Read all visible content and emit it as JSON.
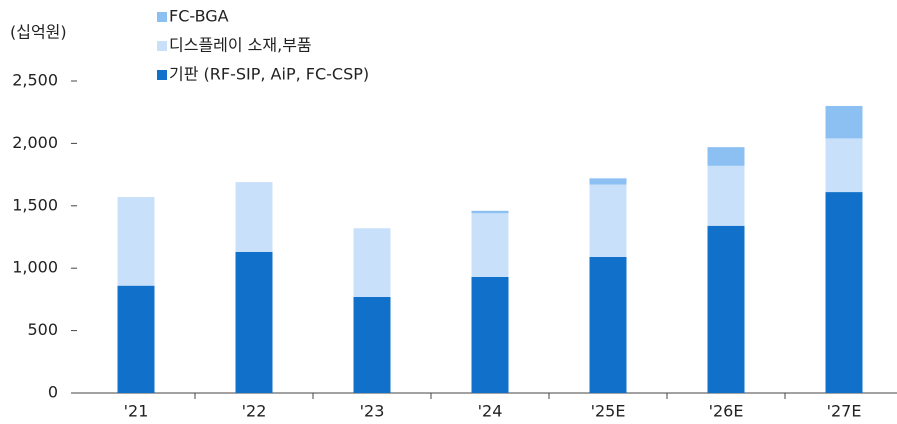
{
  "chart_data": {
    "type": "bar",
    "stacked": true,
    "y_label": "(십억원)",
    "categories": [
      "'21",
      "'22",
      "'23",
      "'24",
      "'25E",
      "'26E",
      "'27E"
    ],
    "series": [
      {
        "name": "기판 (RF-SIP, AiP, FC-CSP)",
        "color": "#1170c9",
        "values": [
          860,
          1130,
          770,
          930,
          1090,
          1340,
          1610
        ]
      },
      {
        "name": "디스플레이 소재,부품",
        "color": "#c9e0fa",
        "values": [
          710,
          560,
          550,
          510,
          580,
          480,
          430
        ]
      },
      {
        "name": "FC-BGA",
        "color": "#8dc0f2",
        "values": [
          0,
          0,
          0,
          20,
          50,
          150,
          260
        ]
      }
    ],
    "ylim": [
      0,
      2500
    ],
    "yticks": [
      0,
      500,
      {
        "value": 1000,
        "label": "1,000"
      },
      {
        "value": 1500,
        "label": "1,500"
      },
      {
        "value": 2000,
        "label": "2,000"
      },
      {
        "value": 2500,
        "label": "2,500"
      }
    ]
  }
}
